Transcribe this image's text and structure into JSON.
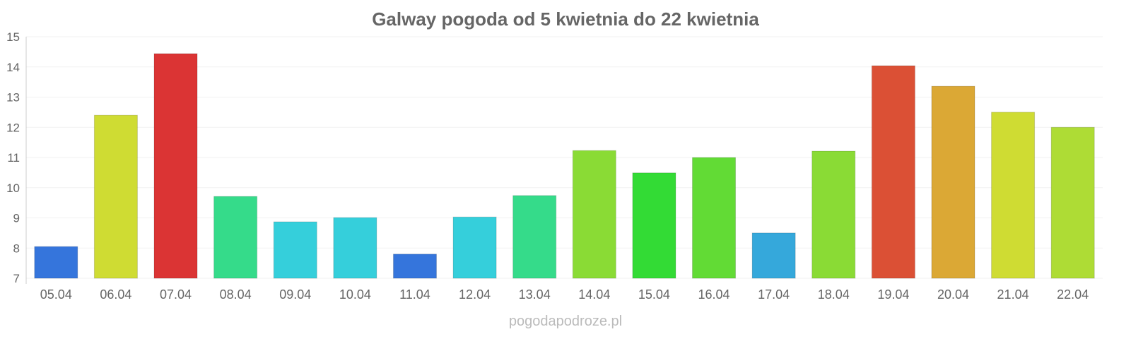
{
  "chart_data": {
    "type": "bar",
    "title": "Galway pogoda od 5 kwietnia do 22 kwietnia",
    "xlabel": "",
    "ylabel": "",
    "ylim": [
      7,
      15
    ],
    "yticks": [
      7,
      8,
      9,
      10,
      11,
      12,
      13,
      14,
      15
    ],
    "grid": true,
    "categories": [
      "05.04",
      "06.04",
      "07.04",
      "08.04",
      "09.04",
      "10.04",
      "11.04",
      "12.04",
      "13.04",
      "14.04",
      "15.04",
      "16.04",
      "17.04",
      "18.04",
      "19.04",
      "20.04",
      "21.04",
      "22.04"
    ],
    "values": [
      8.05,
      12.4,
      14.44,
      9.71,
      8.87,
      9.01,
      7.8,
      9.03,
      9.74,
      11.23,
      10.49,
      11.0,
      8.5,
      11.21,
      14.04,
      13.36,
      12.5,
      12.0
    ],
    "colors": [
      "#3575dc",
      "#cfdc33",
      "#db3434",
      "#35db8a",
      "#35cfdb",
      "#35cfdb",
      "#3575dc",
      "#35cfdb",
      "#35db8a",
      "#8adb35",
      "#33db35",
      "#62db35",
      "#35a8db",
      "#8adb35",
      "#db5035",
      "#dba835",
      "#cfdc33",
      "#aedc35"
    ]
  },
  "watermark": "pogodapodroze.pl"
}
